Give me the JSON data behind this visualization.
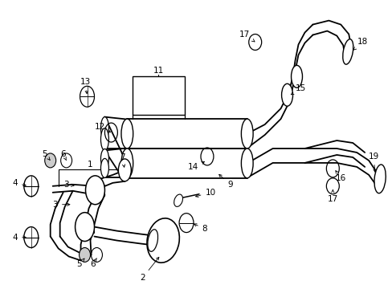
{
  "bg": "#ffffff",
  "lc": "#000000",
  "fig_w": 4.89,
  "fig_h": 3.6,
  "dpi": 100,
  "lw_main": 1.3,
  "lw_thin": 0.8,
  "fs": 7.5
}
